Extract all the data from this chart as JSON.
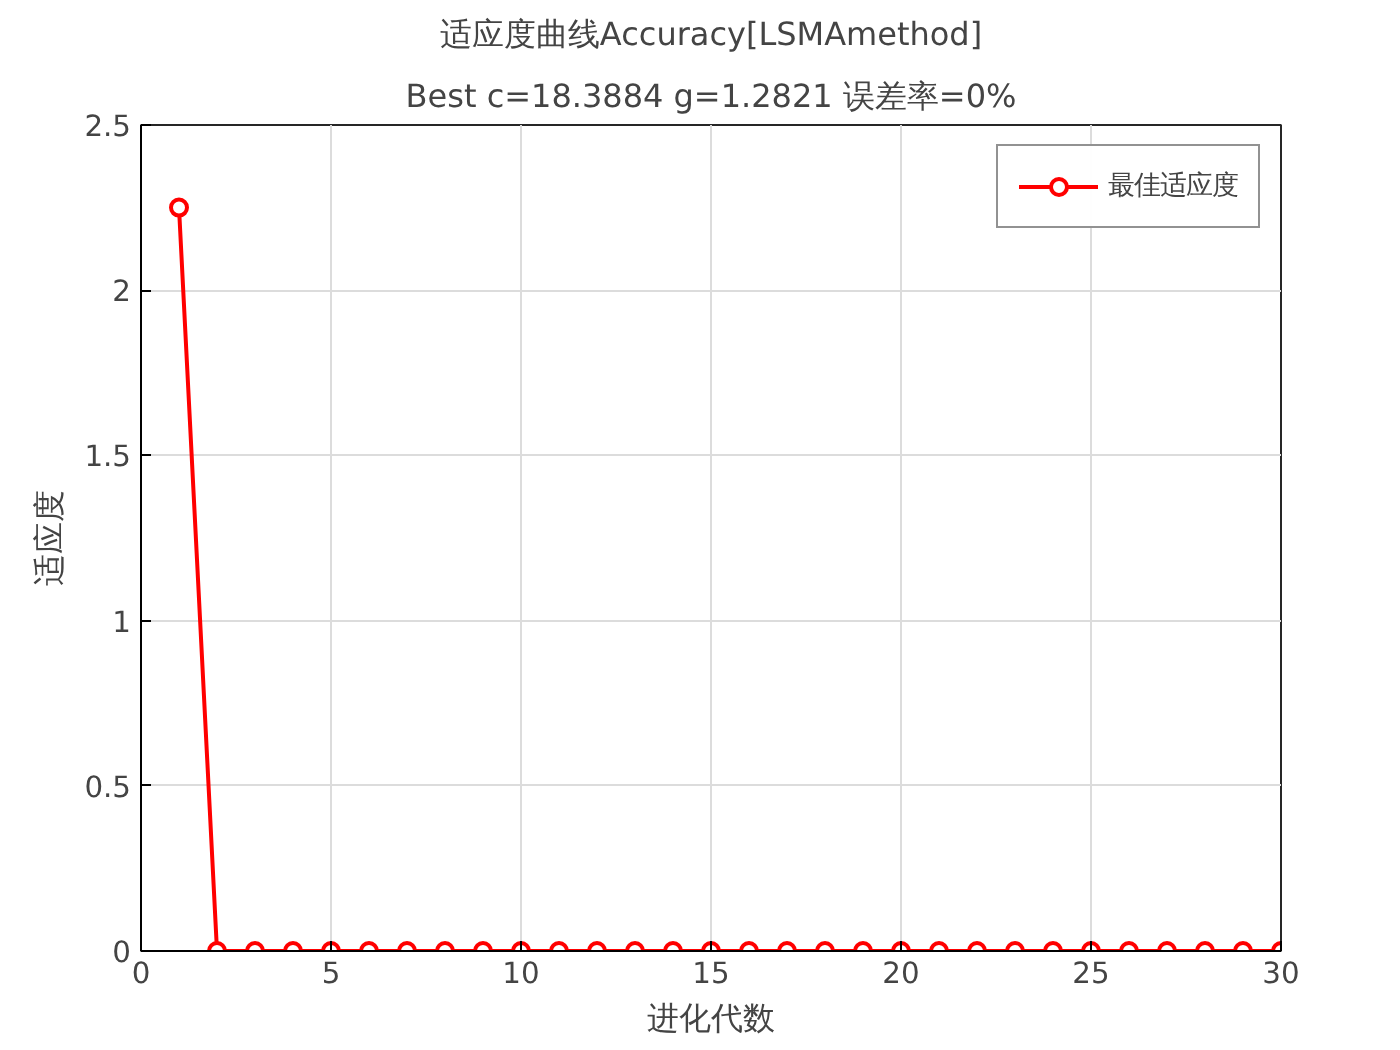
{
  "chart_data": {
    "type": "line",
    "title": "适应度曲线Accuracy[LSMAmethod]",
    "subtitle": "Best c=18.3884 g=1.2821 误差率=0%",
    "xlabel": "进化代数",
    "ylabel": "适应度",
    "x": [
      1,
      2,
      3,
      4,
      5,
      6,
      7,
      8,
      9,
      10,
      11,
      12,
      13,
      14,
      15,
      16,
      17,
      18,
      19,
      20,
      21,
      22,
      23,
      24,
      25,
      26,
      27,
      28,
      29,
      30
    ],
    "series": [
      {
        "name": "最佳适应度",
        "color": "#ff0000",
        "values": [
          2.25,
          0,
          0,
          0,
          0,
          0,
          0,
          0,
          0,
          0,
          0,
          0,
          0,
          0,
          0,
          0,
          0,
          0,
          0,
          0,
          0,
          0,
          0,
          0,
          0,
          0,
          0,
          0,
          0,
          0
        ]
      }
    ],
    "xlim": [
      0,
      30
    ],
    "xticks": [
      0,
      5,
      10,
      15,
      20,
      25,
      30
    ],
    "ylim": [
      0,
      2.5
    ],
    "yticks": [
      0,
      0.5,
      1,
      1.5,
      2,
      2.5
    ],
    "grid": true,
    "legend": "top right",
    "marker": "circle",
    "line_style": "solid"
  }
}
